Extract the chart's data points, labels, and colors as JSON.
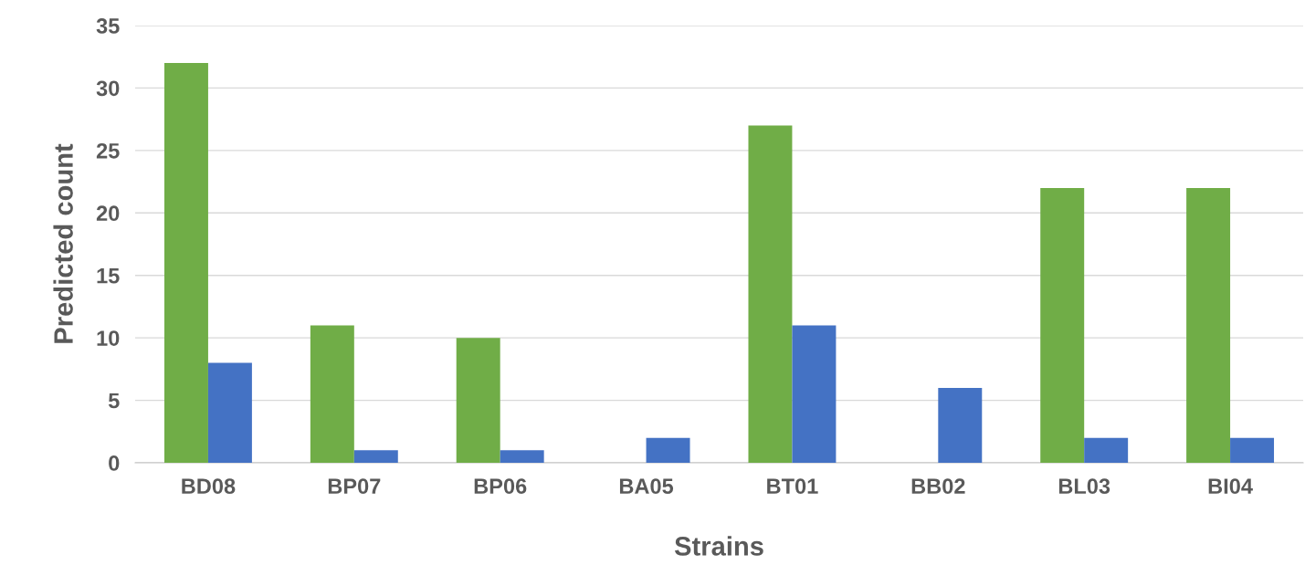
{
  "chart_data": {
    "type": "bar",
    "xlabel": "Strains",
    "ylabel": "Predicted count",
    "categories": [
      "BD08",
      "BP07",
      "BP06",
      "BA05",
      "BT01",
      "BB02",
      "BL03",
      "BI04"
    ],
    "series": [
      {
        "color": "#70ad47",
        "values": [
          32,
          11,
          10,
          null,
          27,
          null,
          22,
          22
        ]
      },
      {
        "color": "#4472c4",
        "values": [
          8,
          1,
          1,
          2,
          11,
          6,
          2,
          2
        ]
      }
    ],
    "ylim": [
      0,
      35
    ],
    "yticks": [
      0,
      5,
      10,
      15,
      20,
      25,
      30,
      35
    ],
    "grid": "y"
  }
}
